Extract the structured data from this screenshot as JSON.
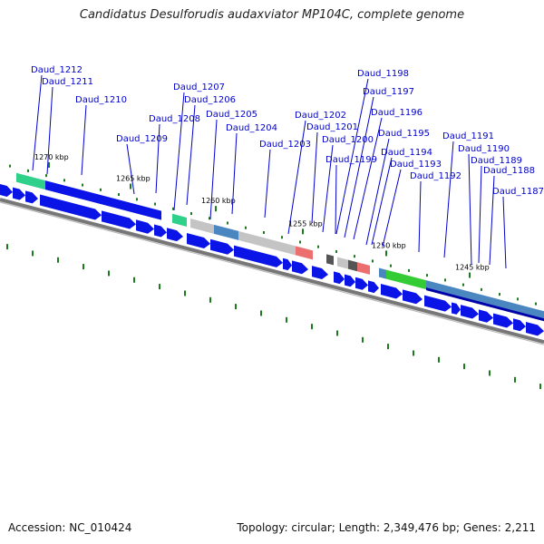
{
  "title": "Candidatus Desulforudis audaxviator MP104C, complete genome",
  "footer": {
    "accession": "Accession: NC_010424",
    "topology": "Topology: circular; Length: 2,349,476 bp; Genes: 2,211"
  },
  "colors": {
    "cds": "#0a14e6",
    "cds_dark": "#0000a8",
    "cog_teal": "#2fd08a",
    "cog_green": "#34cc34",
    "cog_steel": "#4a86c0",
    "cog_gray": "#c4c4c4",
    "cog_dark": "#555555",
    "cog_salmon": "#ec6e6e",
    "label": "#0000cc",
    "tick": "#1e7a1e",
    "backbone": "#777777"
  },
  "position_markers": [
    "1270 kbp",
    "1265 kbp",
    "1260 kbp",
    "1255 kbp",
    "1250 kbp",
    "1245 kbp"
  ],
  "gene_labels": [
    "Daud_1212",
    "Daud_1211",
    "Daud_1210",
    "Daud_1209",
    "Daud_1208",
    "Daud_1207",
    "Daud_1206",
    "Daud_1205",
    "Daud_1204",
    "Daud_1203",
    "Daud_1202",
    "Daud_1201",
    "Daud_1200",
    "Daud_1199",
    "Daud_1198",
    "Daud_1197",
    "Daud_1196",
    "Daud_1195",
    "Daud_1194",
    "Daud_1193",
    "Daud_1192",
    "Daud_1191",
    "Daud_1190",
    "Daud_1189",
    "Daud_1188",
    "Daud_1187"
  ]
}
